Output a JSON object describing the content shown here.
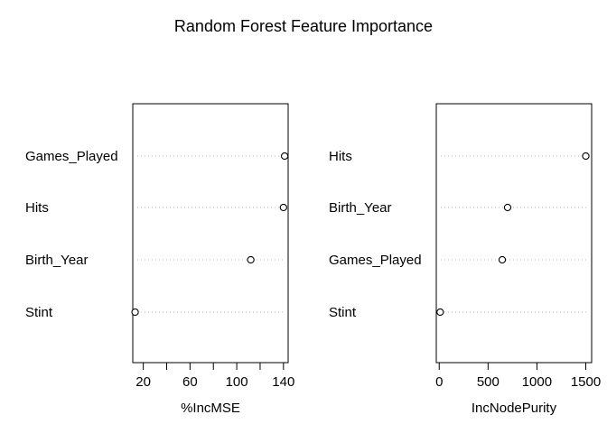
{
  "chart_data": [
    {
      "type": "scatter",
      "title": "Random Forest Feature Importance",
      "xlabel": "%IncMSE",
      "ylabel": "",
      "xlim": [
        11,
        144
      ],
      "xticks": [
        20,
        40,
        60,
        80,
        100,
        120,
        140
      ],
      "xtick_labels": [
        "20",
        "",
        "60",
        "",
        "100",
        "",
        "140"
      ],
      "categories": [
        "Games_Played",
        "Hits",
        "Birth_Year",
        "Stint"
      ],
      "values": [
        141,
        140,
        112,
        13
      ],
      "grid": "dotted horizontal guides",
      "legend": "none"
    },
    {
      "type": "scatter",
      "title": "",
      "xlabel": "IncNodePurity",
      "ylabel": "",
      "xlim": [
        -30,
        1560
      ],
      "xticks": [
        0,
        500,
        1000,
        1500
      ],
      "xtick_labels": [
        "0",
        "500",
        "1000",
        "1500"
      ],
      "categories": [
        "Hits",
        "Birth_Year",
        "Games_Played",
        "Stint"
      ],
      "values": [
        1500,
        700,
        645,
        10
      ],
      "grid": "dotted horizontal guides",
      "legend": "none"
    }
  ]
}
